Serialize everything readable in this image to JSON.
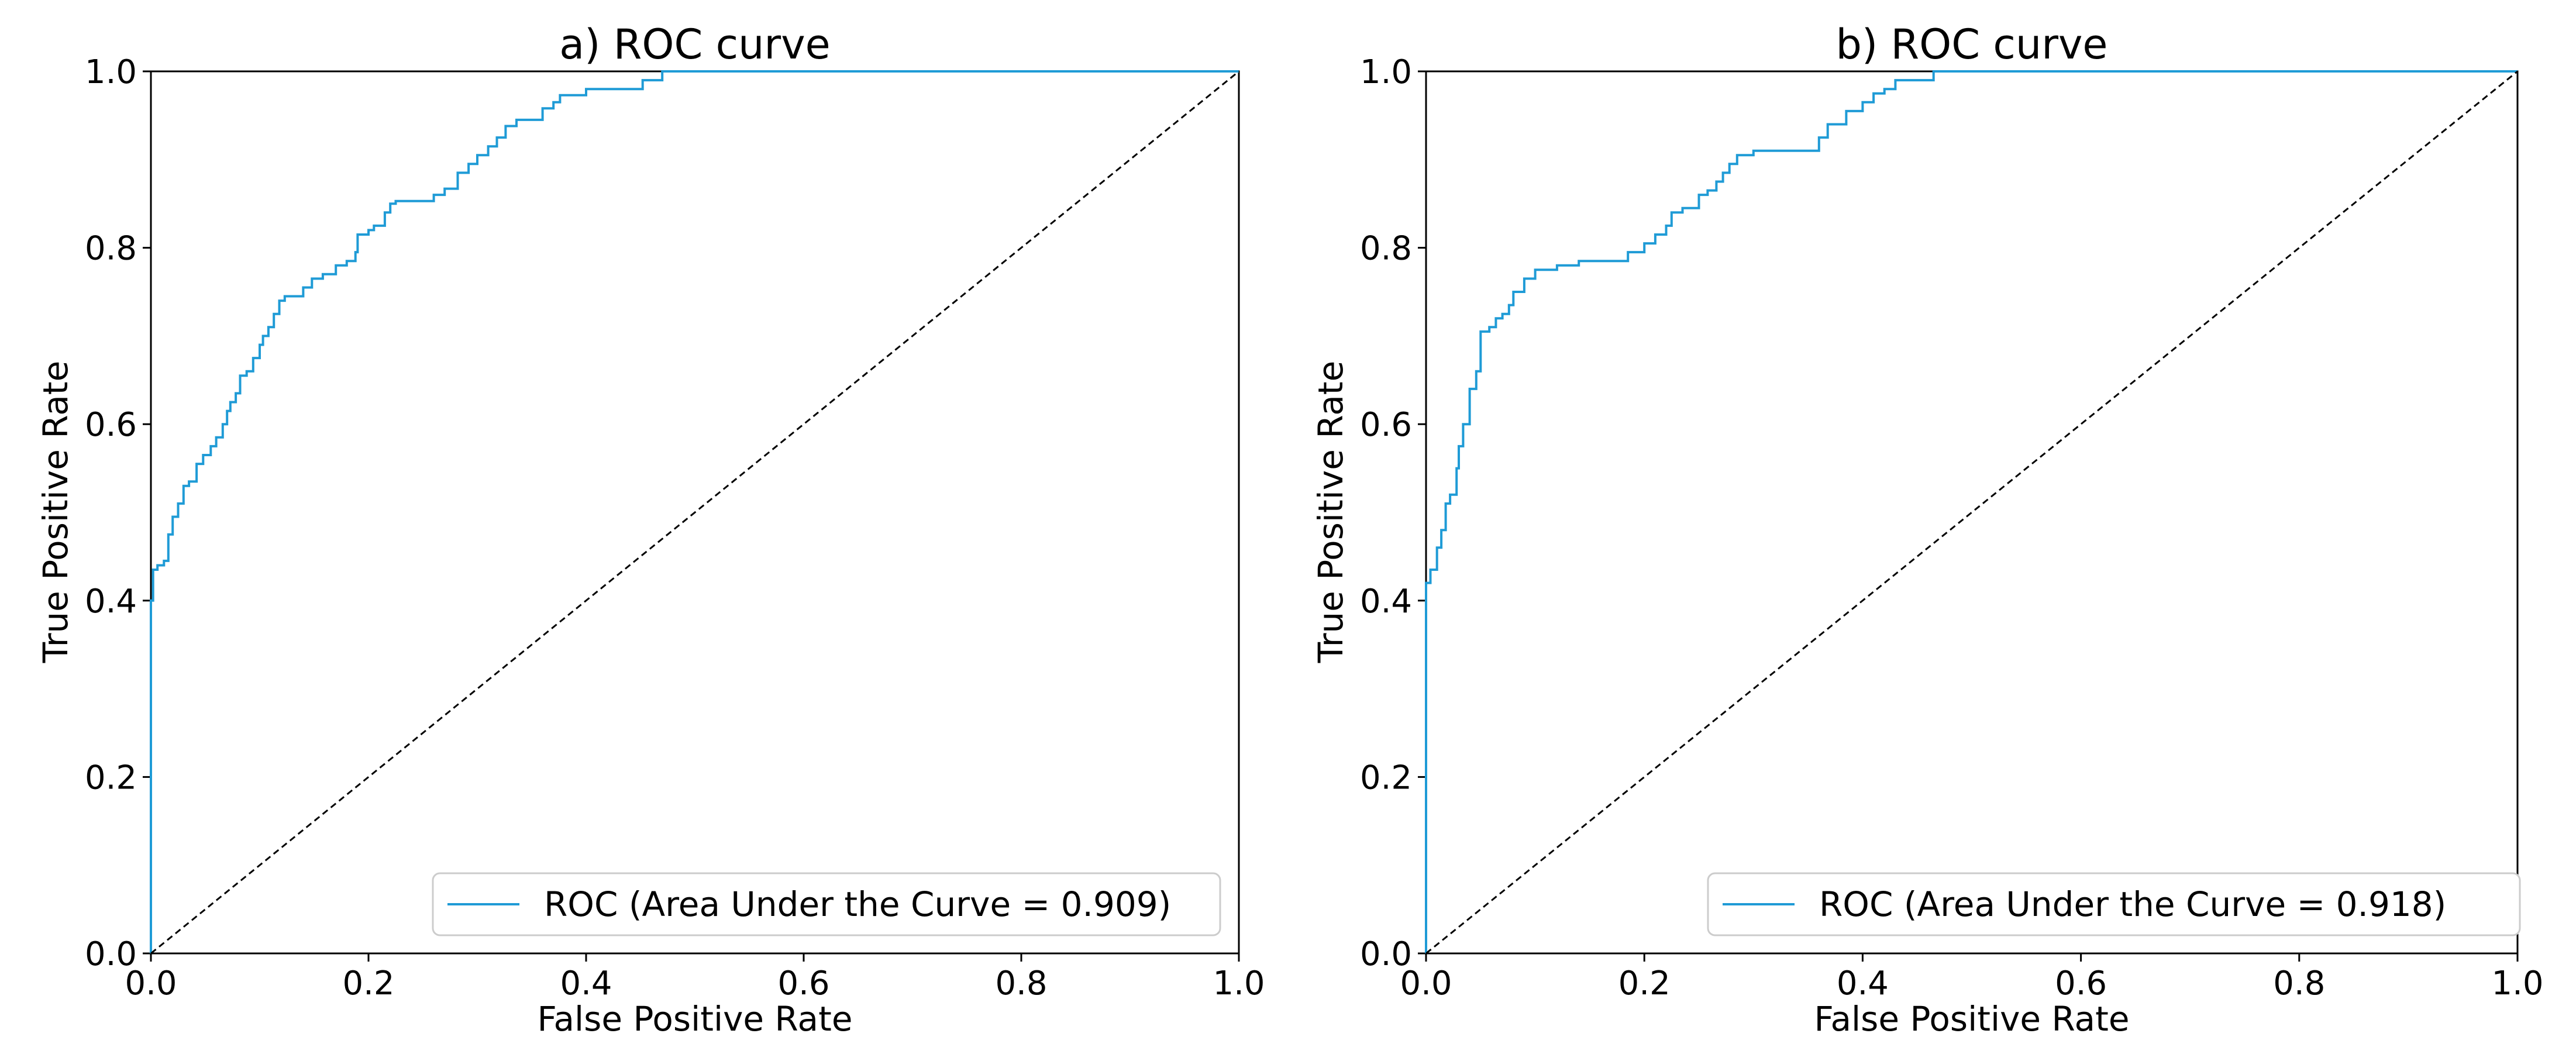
{
  "chart_data": [
    {
      "type": "line",
      "title": "a) ROC curve",
      "xlabel": "False Positive Rate",
      "ylabel": "True Positive Rate",
      "xlim": [
        0.0,
        1.0
      ],
      "ylim": [
        0.0,
        1.0
      ],
      "xticks": [
        "0.0",
        "0.2",
        "0.4",
        "0.6",
        "0.8",
        "1.0"
      ],
      "yticks": [
        "0.0",
        "0.2",
        "0.4",
        "0.6",
        "0.8",
        "1.0"
      ],
      "legend": {
        "placement": "lower-right",
        "label": "ROC (Area Under the Curve = 0.909)"
      },
      "series": [
        {
          "name": "ROC (Area Under the Curve = 0.909)",
          "color": "#1f9bd6",
          "x": [
            0.0,
            0.0,
            0.002,
            0.002,
            0.006,
            0.006,
            0.012,
            0.012,
            0.016,
            0.016,
            0.02,
            0.02,
            0.025,
            0.025,
            0.03,
            0.03,
            0.035,
            0.035,
            0.042,
            0.042,
            0.048,
            0.048,
            0.055,
            0.055,
            0.06,
            0.06,
            0.066,
            0.066,
            0.07,
            0.07,
            0.073,
            0.073,
            0.078,
            0.078,
            0.082,
            0.082,
            0.088,
            0.088,
            0.094,
            0.094,
            0.1,
            0.1,
            0.103,
            0.103,
            0.108,
            0.108,
            0.113,
            0.113,
            0.118,
            0.118,
            0.123,
            0.123,
            0.14,
            0.14,
            0.148,
            0.148,
            0.158,
            0.158,
            0.17,
            0.17,
            0.18,
            0.18,
            0.188,
            0.188,
            0.19,
            0.19,
            0.2,
            0.2,
            0.205,
            0.205,
            0.215,
            0.215,
            0.22,
            0.22,
            0.225,
            0.225,
            0.26,
            0.26,
            0.27,
            0.27,
            0.282,
            0.282,
            0.292,
            0.292,
            0.3,
            0.3,
            0.31,
            0.31,
            0.318,
            0.318,
            0.326,
            0.326,
            0.336,
            0.336,
            0.36,
            0.36,
            0.37,
            0.37,
            0.376,
            0.376,
            0.4,
            0.4,
            0.452,
            0.452,
            0.47,
            0.47,
            0.48,
            0.48,
            0.5,
            0.6,
            0.8,
            1.0
          ],
          "y": [
            0.0,
            0.4,
            0.4,
            0.435,
            0.435,
            0.44,
            0.44,
            0.445,
            0.445,
            0.475,
            0.475,
            0.495,
            0.495,
            0.51,
            0.51,
            0.53,
            0.53,
            0.535,
            0.535,
            0.555,
            0.555,
            0.565,
            0.565,
            0.575,
            0.575,
            0.585,
            0.585,
            0.6,
            0.6,
            0.615,
            0.615,
            0.625,
            0.625,
            0.635,
            0.635,
            0.655,
            0.655,
            0.66,
            0.66,
            0.675,
            0.675,
            0.69,
            0.69,
            0.7,
            0.7,
            0.71,
            0.71,
            0.725,
            0.725,
            0.74,
            0.74,
            0.745,
            0.745,
            0.755,
            0.755,
            0.765,
            0.765,
            0.77,
            0.77,
            0.78,
            0.78,
            0.785,
            0.785,
            0.795,
            0.795,
            0.815,
            0.815,
            0.82,
            0.82,
            0.825,
            0.825,
            0.84,
            0.84,
            0.85,
            0.85,
            0.853,
            0.853,
            0.86,
            0.86,
            0.867,
            0.867,
            0.885,
            0.885,
            0.895,
            0.895,
            0.905,
            0.905,
            0.915,
            0.915,
            0.925,
            0.925,
            0.938,
            0.938,
            0.945,
            0.945,
            0.958,
            0.958,
            0.965,
            0.965,
            0.973,
            0.973,
            0.98,
            0.98,
            0.99,
            0.99,
            1.0,
            1.0,
            1.0,
            1.0,
            1.0,
            1.0,
            1.0
          ]
        },
        {
          "name": "Chance diagonal",
          "color": "#000000",
          "style": "dashed",
          "x": [
            0.0,
            1.0
          ],
          "y": [
            0.0,
            1.0
          ]
        }
      ]
    },
    {
      "type": "line",
      "title": "b) ROC curve",
      "xlabel": "False Positive Rate",
      "ylabel": "True Positive Rate",
      "xlim": [
        0.0,
        1.0
      ],
      "ylim": [
        0.0,
        1.0
      ],
      "xticks": [
        "0.0",
        "0.2",
        "0.4",
        "0.6",
        "0.8",
        "1.0"
      ],
      "yticks": [
        "0.0",
        "0.2",
        "0.4",
        "0.6",
        "0.8",
        "1.0"
      ],
      "legend": {
        "placement": "lower-right",
        "label": "ROC (Area Under the Curve = 0.918)"
      },
      "series": [
        {
          "name": "ROC (Area Under the Curve = 0.918)",
          "color": "#1f9bd6",
          "x": [
            0.0,
            0.0,
            0.004,
            0.004,
            0.01,
            0.01,
            0.014,
            0.014,
            0.018,
            0.018,
            0.022,
            0.022,
            0.028,
            0.028,
            0.03,
            0.03,
            0.034,
            0.034,
            0.04,
            0.04,
            0.046,
            0.046,
            0.05,
            0.05,
            0.058,
            0.058,
            0.064,
            0.064,
            0.07,
            0.07,
            0.076,
            0.076,
            0.08,
            0.08,
            0.09,
            0.09,
            0.1,
            0.1,
            0.12,
            0.12,
            0.14,
            0.14,
            0.185,
            0.185,
            0.2,
            0.2,
            0.21,
            0.21,
            0.22,
            0.22,
            0.225,
            0.225,
            0.235,
            0.235,
            0.25,
            0.25,
            0.258,
            0.258,
            0.266,
            0.266,
            0.272,
            0.272,
            0.278,
            0.278,
            0.285,
            0.285,
            0.3,
            0.3,
            0.32,
            0.32,
            0.36,
            0.36,
            0.368,
            0.368,
            0.385,
            0.385,
            0.4,
            0.4,
            0.41,
            0.41,
            0.42,
            0.42,
            0.43,
            0.43,
            0.465,
            0.465,
            0.47,
            0.5,
            0.6,
            0.8,
            1.0
          ],
          "y": [
            0.0,
            0.42,
            0.42,
            0.435,
            0.435,
            0.46,
            0.46,
            0.48,
            0.48,
            0.51,
            0.51,
            0.52,
            0.52,
            0.55,
            0.55,
            0.575,
            0.575,
            0.6,
            0.6,
            0.64,
            0.64,
            0.66,
            0.66,
            0.705,
            0.705,
            0.71,
            0.71,
            0.72,
            0.72,
            0.725,
            0.725,
            0.735,
            0.735,
            0.75,
            0.75,
            0.765,
            0.765,
            0.775,
            0.775,
            0.78,
            0.78,
            0.785,
            0.785,
            0.795,
            0.795,
            0.805,
            0.805,
            0.815,
            0.815,
            0.825,
            0.825,
            0.84,
            0.84,
            0.845,
            0.845,
            0.86,
            0.86,
            0.865,
            0.865,
            0.875,
            0.875,
            0.885,
            0.885,
            0.895,
            0.895,
            0.905,
            0.905,
            0.91,
            0.91,
            0.91,
            0.91,
            0.925,
            0.925,
            0.94,
            0.94,
            0.955,
            0.955,
            0.965,
            0.965,
            0.975,
            0.975,
            0.98,
            0.98,
            0.99,
            0.99,
            1.0,
            1.0,
            1.0,
            1.0,
            1.0,
            1.0
          ]
        },
        {
          "name": "Chance diagonal",
          "color": "#000000",
          "style": "dashed",
          "x": [
            0.0,
            1.0
          ],
          "y": [
            0.0,
            1.0
          ]
        }
      ]
    }
  ]
}
